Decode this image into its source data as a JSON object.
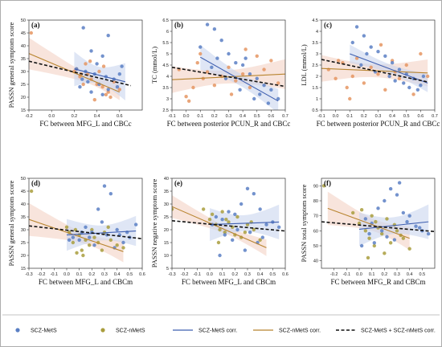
{
  "colors": {
    "mets": "#5a7fc4",
    "mets_line": "#3f5fb0",
    "mets_band": "#c9d6ee",
    "nmets_point": "#a99d3d",
    "nmets_line": "#b8842f",
    "nmets_band": "#f3d2c4",
    "orange_point": "#e59561",
    "pooled": "#111111"
  },
  "legend": {
    "mets": "SCZ-MetS",
    "nmets": "SCZ-nMetS",
    "mets_corr": "SCZ-MetS corr.",
    "nmets_corr": "SCZ-nMetS corr.",
    "pooled_corr": "SCZ-MetS + SCZ-nMetS corr."
  },
  "chart_data": [
    {
      "type": "scatter",
      "panel": "(a)",
      "xlabel": "FC between MFG_L and CBCc",
      "ylabel": "PASSN general symptom score",
      "xlim": [
        -0.2,
        0.8
      ],
      "ylim": [
        15,
        50
      ],
      "xticks": [
        -0.2,
        0.0,
        0.2,
        0.4,
        0.6
      ],
      "yticks": [
        15,
        20,
        25,
        30,
        35,
        40,
        45,
        50
      ],
      "tick_decimals": 1,
      "nmets_color": "orange_point",
      "mets_points": [
        [
          0.28,
          47
        ],
        [
          0.5,
          44
        ],
        [
          0.35,
          38
        ],
        [
          0.45,
          36
        ],
        [
          0.4,
          33
        ],
        [
          0.62,
          32
        ],
        [
          0.22,
          31
        ],
        [
          0.3,
          30
        ],
        [
          0.38,
          29
        ],
        [
          0.48,
          28
        ],
        [
          0.55,
          27
        ],
        [
          0.32,
          26
        ],
        [
          0.42,
          25
        ],
        [
          0.25,
          24
        ],
        [
          0.5,
          23
        ],
        [
          0.6,
          29
        ],
        [
          0.35,
          22
        ],
        [
          0.45,
          21
        ],
        [
          0.58,
          24
        ],
        [
          0.27,
          27
        ]
      ],
      "nmets_points": [
        [
          -0.18,
          45
        ],
        [
          0.2,
          30
        ],
        [
          0.25,
          28
        ],
        [
          0.3,
          33
        ],
        [
          0.35,
          27
        ],
        [
          0.4,
          25
        ],
        [
          0.45,
          24
        ],
        [
          0.5,
          22
        ],
        [
          0.55,
          26
        ],
        [
          0.22,
          31
        ],
        [
          0.32,
          29
        ],
        [
          0.42,
          30
        ],
        [
          0.48,
          21
        ],
        [
          0.52,
          20
        ],
        [
          0.38,
          19
        ],
        [
          0.28,
          25
        ],
        [
          0.6,
          23
        ],
        [
          0.46,
          32
        ],
        [
          0.34,
          34
        ],
        [
          0.26,
          29
        ]
      ],
      "mets_line": [
        0.2,
        31.0,
        0.65,
        26.0
      ],
      "nmets_line": [
        -0.2,
        37.0,
        0.6,
        22.0
      ],
      "pooled_line": [
        -0.2,
        34.0,
        0.7,
        24.5
      ]
    },
    {
      "type": "scatter",
      "panel": "(b)",
      "xlabel": "FC between posterior PCUN_R and CBCc",
      "ylabel": "TC (mmol/L)",
      "xlim": [
        -0.1,
        0.7
      ],
      "ylim": [
        2.5,
        6.5
      ],
      "xticks": [
        -0.1,
        0.0,
        0.1,
        0.2,
        0.3,
        0.4,
        0.5,
        0.6,
        0.7
      ],
      "yticks": [
        2.5,
        3.0,
        3.5,
        4.0,
        4.5,
        5.0,
        5.5,
        6.0,
        6.5
      ],
      "tick_decimals": 1,
      "nmets_color": "orange_point",
      "mets_points": [
        [
          0.15,
          6.3
        ],
        [
          0.2,
          6.1
        ],
        [
          0.25,
          5.6
        ],
        [
          0.1,
          5.3
        ],
        [
          0.3,
          5.0
        ],
        [
          0.35,
          4.6
        ],
        [
          0.4,
          4.5
        ],
        [
          0.45,
          4.1
        ],
        [
          0.5,
          3.9
        ],
        [
          0.55,
          3.6
        ],
        [
          0.6,
          3.4
        ],
        [
          0.65,
          3.0
        ],
        [
          0.18,
          4.4
        ],
        [
          0.28,
          3.9
        ],
        [
          0.38,
          3.4
        ],
        [
          0.48,
          3.0
        ],
        [
          0.58,
          2.8
        ],
        [
          0.22,
          4.8
        ],
        [
          0.42,
          4.8
        ],
        [
          0.52,
          3.2
        ]
      ],
      "nmets_points": [
        [
          -0.05,
          4.3
        ],
        [
          0.0,
          3.1
        ],
        [
          0.05,
          3.5
        ],
        [
          0.08,
          4.6
        ],
        [
          0.12,
          3.9
        ],
        [
          0.15,
          4.2
        ],
        [
          0.2,
          3.6
        ],
        [
          0.25,
          4.0
        ],
        [
          0.3,
          4.4
        ],
        [
          0.35,
          3.8
        ],
        [
          0.4,
          4.1
        ],
        [
          0.45,
          3.5
        ],
        [
          0.5,
          4.9
        ],
        [
          0.55,
          4.3
        ],
        [
          0.6,
          4.7
        ],
        [
          0.65,
          3.7
        ],
        [
          0.1,
          5.0
        ],
        [
          0.32,
          3.2
        ],
        [
          0.42,
          5.2
        ],
        [
          0.02,
          2.9
        ]
      ],
      "mets_line": [
        0.1,
        4.85,
        0.65,
        2.9
      ],
      "nmets_line": [
        -0.1,
        3.85,
        0.7,
        4.1
      ],
      "pooled_line": [
        -0.1,
        4.4,
        0.7,
        3.55
      ]
    },
    {
      "type": "scatter",
      "panel": "(c)",
      "xlabel": "FC between posterior PCUN_R and CBCc",
      "ylabel": "LDL (mmol/L)",
      "xlim": [
        -0.1,
        0.7
      ],
      "ylim": [
        0.5,
        4.5
      ],
      "xticks": [
        -0.1,
        0.0,
        0.1,
        0.2,
        0.3,
        0.4,
        0.5,
        0.6,
        0.7
      ],
      "yticks": [
        0.5,
        1.0,
        1.5,
        2.0,
        2.5,
        3.0,
        3.5,
        4.0,
        4.5
      ],
      "tick_decimals": 1,
      "nmets_color": "orange_point",
      "mets_points": [
        [
          0.15,
          4.2
        ],
        [
          0.2,
          3.8
        ],
        [
          0.12,
          3.5
        ],
        [
          0.25,
          3.3
        ],
        [
          0.3,
          3.1
        ],
        [
          0.35,
          2.9
        ],
        [
          0.4,
          2.6
        ],
        [
          0.45,
          2.3
        ],
        [
          0.5,
          2.1
        ],
        [
          0.55,
          1.9
        ],
        [
          0.6,
          1.6
        ],
        [
          0.18,
          2.5
        ],
        [
          0.28,
          2.2
        ],
        [
          0.38,
          2.0
        ],
        [
          0.48,
          1.7
        ],
        [
          0.58,
          1.4
        ],
        [
          0.22,
          3.0
        ],
        [
          0.42,
          1.8
        ],
        [
          0.52,
          1.5
        ],
        [
          0.62,
          2.0
        ]
      ],
      "nmets_points": [
        [
          -0.05,
          2.3
        ],
        [
          0.0,
          1.9
        ],
        [
          0.05,
          2.6
        ],
        [
          0.08,
          1.5
        ],
        [
          0.12,
          2.0
        ],
        [
          0.15,
          2.8
        ],
        [
          0.2,
          1.7
        ],
        [
          0.25,
          2.4
        ],
        [
          0.3,
          2.1
        ],
        [
          0.35,
          1.4
        ],
        [
          0.4,
          2.7
        ],
        [
          0.45,
          1.9
        ],
        [
          0.5,
          2.5
        ],
        [
          0.55,
          1.2
        ],
        [
          0.6,
          3.0
        ],
        [
          0.65,
          2.0
        ],
        [
          0.1,
          1.0
        ],
        [
          0.32,
          3.4
        ],
        [
          0.42,
          2.2
        ],
        [
          0.02,
          2.7
        ]
      ],
      "mets_line": [
        0.1,
        3.0,
        0.65,
        1.7
      ],
      "nmets_line": [
        -0.1,
        2.35,
        0.65,
        2.15
      ],
      "pooled_line": [
        -0.1,
        2.75,
        0.65,
        1.75
      ]
    },
    {
      "type": "scatter",
      "panel": "(d)",
      "xlabel": "FC between MFG_L and CBCm",
      "ylabel": "PASSN general symptom score",
      "xlim": [
        -0.3,
        0.6
      ],
      "ylim": [
        15,
        50
      ],
      "xticks": [
        -0.3,
        -0.2,
        -0.1,
        0.0,
        0.1,
        0.2,
        0.3,
        0.4,
        0.5,
        0.6
      ],
      "yticks": [
        15,
        20,
        25,
        30,
        35,
        40,
        45,
        50
      ],
      "tick_decimals": 1,
      "nmets_color": "nmets_point",
      "mets_points": [
        [
          0.3,
          47
        ],
        [
          0.35,
          44
        ],
        [
          0.25,
          38
        ],
        [
          0.28,
          33
        ],
        [
          0.15,
          31
        ],
        [
          0.2,
          29
        ],
        [
          0.32,
          28
        ],
        [
          0.05,
          27
        ],
        [
          0.1,
          26
        ],
        [
          0.4,
          30
        ],
        [
          0.45,
          25
        ],
        [
          0.5,
          27
        ],
        [
          0.55,
          32
        ],
        [
          0.22,
          24
        ],
        [
          0.38,
          23
        ],
        [
          0.12,
          29
        ],
        [
          0.02,
          26
        ],
        [
          0.48,
          29
        ],
        [
          0.18,
          27
        ],
        [
          0.42,
          28
        ]
      ],
      "nmets_points": [
        [
          -0.28,
          45
        ],
        [
          0.0,
          31
        ],
        [
          0.05,
          25
        ],
        [
          0.08,
          21
        ],
        [
          0.1,
          28
        ],
        [
          0.12,
          22
        ],
        [
          0.15,
          26
        ],
        [
          0.18,
          24
        ],
        [
          0.2,
          30
        ],
        [
          0.22,
          27
        ],
        [
          0.25,
          25
        ],
        [
          0.3,
          29
        ],
        [
          0.35,
          26
        ],
        [
          0.4,
          24
        ],
        [
          0.45,
          23
        ],
        [
          0.02,
          29
        ],
        [
          0.07,
          30
        ],
        [
          0.13,
          20
        ],
        [
          0.28,
          22
        ],
        [
          0.33,
          31
        ]
      ],
      "mets_line": [
        0.0,
        28.0,
        0.55,
        29.5
      ],
      "nmets_line": [
        -0.3,
        34.0,
        0.45,
        21.5
      ],
      "pooled_line": [
        -0.3,
        31.5,
        0.6,
        26.5
      ]
    },
    {
      "type": "scatter",
      "panel": "(e)",
      "xlabel": "FC between MFG_L and CBCm",
      "ylabel": "PASSN negative symptom score",
      "xlim": [
        -0.3,
        0.6
      ],
      "ylim": [
        5,
        40
      ],
      "xticks": [
        -0.3,
        -0.2,
        -0.1,
        0.0,
        0.1,
        0.2,
        0.3,
        0.4,
        0.5,
        0.6
      ],
      "yticks": [
        5,
        10,
        15,
        20,
        25,
        30,
        35,
        40
      ],
      "tick_decimals": 1,
      "nmets_color": "nmets_point",
      "mets_points": [
        [
          0.3,
          36
        ],
        [
          0.35,
          34
        ],
        [
          0.25,
          30
        ],
        [
          0.4,
          28
        ],
        [
          0.15,
          27
        ],
        [
          0.2,
          26
        ],
        [
          0.05,
          25
        ],
        [
          0.1,
          24
        ],
        [
          0.45,
          22
        ],
        [
          0.5,
          23
        ],
        [
          0.55,
          21
        ],
        [
          0.22,
          20
        ],
        [
          0.32,
          19
        ],
        [
          0.12,
          18
        ],
        [
          0.42,
          17
        ],
        [
          0.02,
          22
        ],
        [
          0.18,
          16
        ],
        [
          0.38,
          15
        ],
        [
          0.28,
          12
        ],
        [
          0.08,
          10
        ]
      ],
      "nmets_points": [
        [
          -0.3,
          28
        ],
        [
          -0.05,
          28
        ],
        [
          0.0,
          24
        ],
        [
          0.05,
          22
        ],
        [
          0.08,
          20
        ],
        [
          0.1,
          27
        ],
        [
          0.12,
          19
        ],
        [
          0.15,
          23
        ],
        [
          0.18,
          21
        ],
        [
          0.2,
          18
        ],
        [
          0.22,
          25
        ],
        [
          0.25,
          17
        ],
        [
          0.3,
          22
        ],
        [
          0.35,
          20
        ],
        [
          0.4,
          16
        ],
        [
          0.02,
          26
        ],
        [
          0.07,
          15
        ],
        [
          0.13,
          24
        ],
        [
          0.28,
          19
        ],
        [
          0.33,
          23
        ]
      ],
      "mets_line": [
        0.0,
        22.0,
        0.55,
        23.0
      ],
      "nmets_line": [
        -0.3,
        29.0,
        0.45,
        13.0
      ],
      "pooled_line": [
        -0.3,
        23.5,
        0.6,
        19.5
      ]
    },
    {
      "type": "scatter",
      "panel": "(f)",
      "xlabel": "FC between MFG_R and CBCm",
      "ylabel": "PASSN total symptom score",
      "xlim": [
        -0.3,
        0.6
      ],
      "ylim": [
        35,
        95
      ],
      "xticks": [
        -0.2,
        -0.1,
        0.0,
        0.1,
        0.2,
        0.3,
        0.4,
        0.5
      ],
      "yticks": [
        40,
        50,
        60,
        70,
        80,
        90
      ],
      "tick_decimals": 1,
      "nmets_color": "nmets_point",
      "mets_points": [
        [
          0.32,
          92
        ],
        [
          0.25,
          88
        ],
        [
          0.3,
          84
        ],
        [
          0.2,
          80
        ],
        [
          0.15,
          75
        ],
        [
          0.35,
          72
        ],
        [
          0.4,
          70
        ],
        [
          0.05,
          68
        ],
        [
          0.1,
          65
        ],
        [
          0.45,
          63
        ],
        [
          0.5,
          60
        ],
        [
          0.55,
          58
        ],
        [
          0.22,
          56
        ],
        [
          0.28,
          54
        ],
        [
          0.12,
          52
        ],
        [
          0.02,
          50
        ],
        [
          0.38,
          66
        ],
        [
          0.48,
          62
        ],
        [
          0.18,
          60
        ],
        [
          0.08,
          58
        ]
      ],
      "nmets_points": [
        [
          -0.28,
          90
        ],
        [
          -0.05,
          72
        ],
        [
          0.0,
          65
        ],
        [
          0.05,
          60
        ],
        [
          0.08,
          55
        ],
        [
          0.1,
          70
        ],
        [
          0.12,
          50
        ],
        [
          0.15,
          62
        ],
        [
          0.18,
          58
        ],
        [
          0.2,
          45
        ],
        [
          0.22,
          68
        ],
        [
          0.25,
          52
        ],
        [
          0.3,
          60
        ],
        [
          0.35,
          55
        ],
        [
          0.4,
          48
        ],
        [
          0.02,
          74
        ],
        [
          0.07,
          42
        ],
        [
          0.13,
          66
        ],
        [
          0.28,
          64
        ],
        [
          0.33,
          57
        ]
      ],
      "mets_line": [
        0.0,
        61.0,
        0.55,
        66.0
      ],
      "nmets_line": [
        -0.25,
        75.0,
        0.4,
        55.0
      ],
      "pooled_line": [
        -0.3,
        66.0,
        0.6,
        59.5
      ]
    }
  ]
}
